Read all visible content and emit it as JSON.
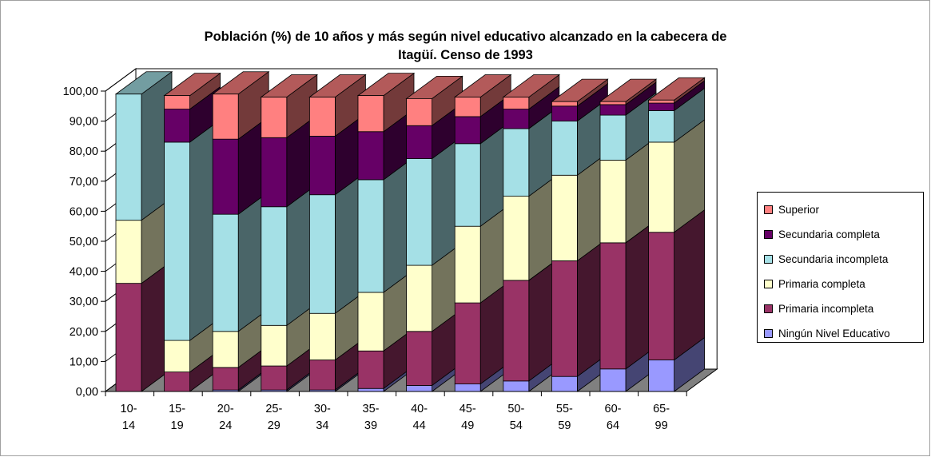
{
  "chart_data": {
    "type": "bar",
    "stacked": true,
    "three_d": true,
    "title_lines": [
      "Población (%) de 10 años y más según nivel educativo alcanzado en la cabecera de",
      "Itagüí.  Censo de 1993"
    ],
    "categories": [
      [
        "10-",
        "14"
      ],
      [
        "15-",
        "19"
      ],
      [
        "20-",
        "24"
      ],
      [
        "25-",
        "29"
      ],
      [
        "30-",
        "34"
      ],
      [
        "35-",
        "39"
      ],
      [
        "40-",
        "44"
      ],
      [
        "45-",
        "49"
      ],
      [
        "50-",
        "54"
      ],
      [
        "55-",
        "59"
      ],
      [
        "60-",
        "64"
      ],
      [
        "65-",
        "99"
      ]
    ],
    "y_ticks": [
      "0,00",
      "10,00",
      "20,00",
      "30,00",
      "40,00",
      "50,00",
      "60,00",
      "70,00",
      "80,00",
      "90,00",
      "100,00"
    ],
    "ylim": [
      0,
      100
    ],
    "legend_position": "right",
    "series": [
      {
        "name": "Ningún Nivel Educativo",
        "color": "#9999FF",
        "values": [
          0,
          0,
          0.5,
          0.5,
          0.5,
          1,
          2,
          2.5,
          3.5,
          5,
          7.5,
          10.5
        ]
      },
      {
        "name": "Primaria incompleta",
        "color": "#993366",
        "values": [
          36,
          6.5,
          7.5,
          8,
          10,
          12.5,
          18,
          27,
          33.5,
          38.5,
          42,
          42.5
        ]
      },
      {
        "name": "Primaria completa",
        "color": "#FFFFCC",
        "values": [
          21,
          10.5,
          12,
          13.5,
          15.5,
          19.5,
          22,
          25.5,
          28,
          28.5,
          27.5,
          30
        ]
      },
      {
        "name": "Secundaria incompleta",
        "color": "#A5E0E6",
        "values": [
          42,
          66,
          39,
          39.5,
          39.5,
          37.5,
          35.5,
          27.5,
          22.5,
          18,
          15,
          10.5
        ]
      },
      {
        "name": "Secundaria completa",
        "color": "#660066",
        "values": [
          0,
          11,
          25,
          23,
          19.5,
          16,
          11,
          9,
          6.5,
          5,
          3.5,
          2.5
        ]
      },
      {
        "name": "Superior",
        "color": "#FF8080",
        "values": [
          0,
          4.5,
          15,
          13.5,
          13,
          12,
          9,
          6.5,
          4,
          1.5,
          1,
          1
        ]
      }
    ]
  }
}
